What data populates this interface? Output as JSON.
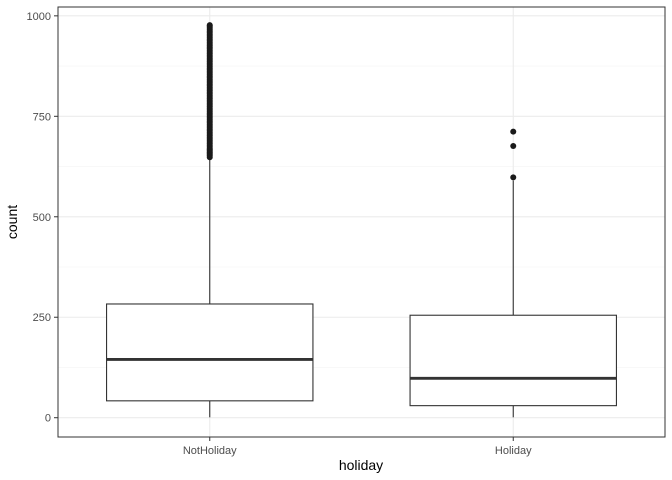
{
  "chart_data": {
    "type": "boxplot",
    "title": "",
    "xlabel": "holiday",
    "ylabel": "count",
    "categories": [
      "NotHoliday",
      "Holiday"
    ],
    "ylim": [
      -48,
      1022
    ],
    "yticks": [
      0,
      250,
      500,
      750,
      1000
    ],
    "ytick_labels": [
      "0",
      "250",
      "500",
      "750",
      "1000"
    ],
    "grid": true,
    "legend": "none",
    "boxes": [
      {
        "category": "NotHoliday",
        "min": 1,
        "q1": 42,
        "median": 145,
        "q3": 283,
        "whisker_high": 646,
        "outliers": [
          648,
          652,
          655,
          658,
          661,
          664,
          667,
          670,
          674,
          678,
          682,
          686,
          690,
          694,
          698,
          702,
          706,
          710,
          714,
          718,
          722,
          726,
          730,
          734,
          738,
          742,
          746,
          750,
          754,
          758,
          762,
          766,
          770,
          774,
          778,
          782,
          786,
          790,
          794,
          798,
          802,
          806,
          810,
          814,
          818,
          822,
          826,
          830,
          834,
          838,
          842,
          846,
          850,
          854,
          858,
          862,
          866,
          870,
          874,
          878,
          882,
          886,
          890,
          894,
          898,
          902,
          906,
          910,
          914,
          918,
          922,
          926,
          930,
          934,
          938,
          942,
          946,
          950,
          954,
          958,
          962,
          966,
          970,
          974,
          977
        ]
      },
      {
        "category": "Holiday",
        "min": 1,
        "q1": 30,
        "median": 98,
        "q3": 255,
        "whisker_high": 590,
        "outliers": [
          598,
          676,
          712
        ]
      }
    ],
    "colors": {
      "box_fill": "#ffffff",
      "box_stroke": "#333333",
      "panel_border": "#333333",
      "grid_major": "#ebebeb",
      "grid_minor": "#f5f5f5",
      "tick_text": "#4d4d4d",
      "outlier": "#1a1a1a"
    }
  }
}
